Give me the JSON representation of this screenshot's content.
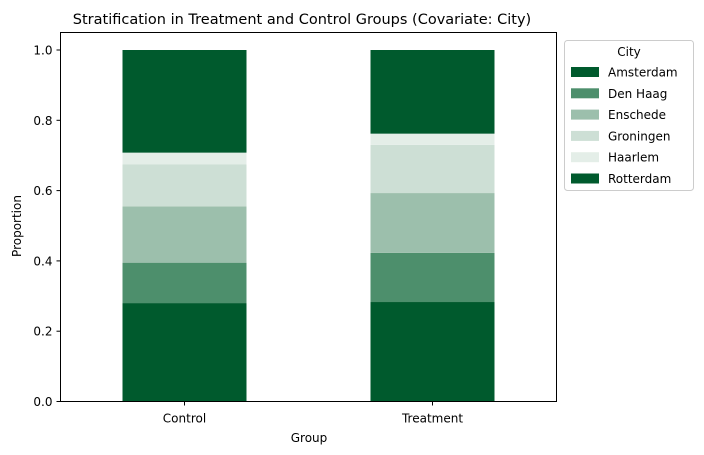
{
  "chart_data": {
    "type": "bar",
    "stacked": true,
    "title": "Stratification in Treatment and Control Groups (Covariate: City)",
    "xlabel": "Group",
    "ylabel": "Proportion",
    "ylim": [
      0,
      1.05
    ],
    "yticks": [
      "0.0",
      "0.2",
      "0.4",
      "0.6",
      "0.8",
      "1.0"
    ],
    "categories": [
      "Control",
      "Treatment"
    ],
    "legend": {
      "title": "City",
      "placement": "outside-right-top"
    },
    "series": [
      {
        "name": "Amsterdam",
        "color": "#005a2d",
        "values": [
          0.28,
          0.283
        ]
      },
      {
        "name": "Den Haag",
        "color": "#4d8f6c",
        "values": [
          0.115,
          0.14
        ]
      },
      {
        "name": "Enschede",
        "color": "#9cbfac",
        "values": [
          0.16,
          0.17
        ]
      },
      {
        "name": "Groningen",
        "color": "#cddfd5",
        "values": [
          0.12,
          0.137
        ]
      },
      {
        "name": "Haarlem",
        "color": "#e4eee8",
        "values": [
          0.033,
          0.032
        ]
      },
      {
        "name": "Rotterdam",
        "color": "#005a2d",
        "values": [
          0.292,
          0.238
        ]
      }
    ]
  }
}
